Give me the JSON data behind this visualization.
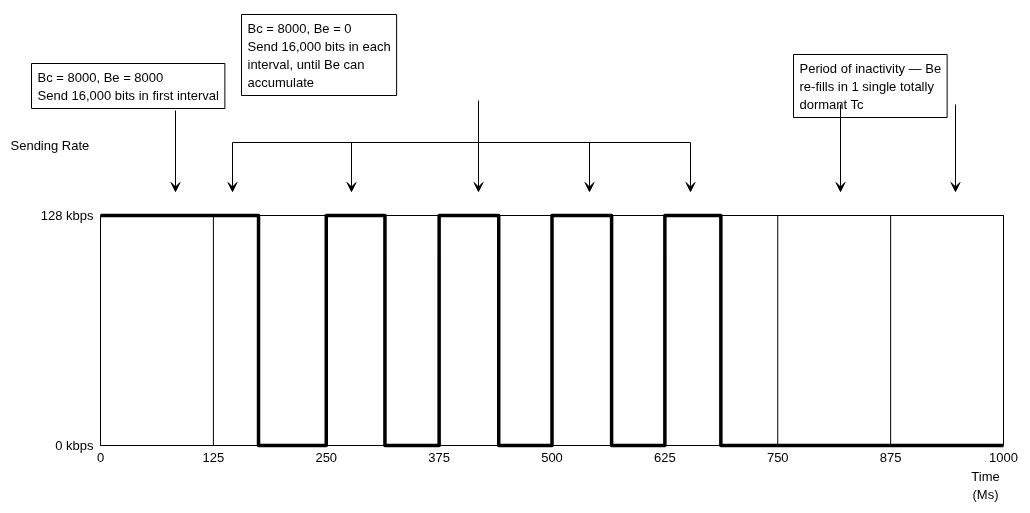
{
  "chart_data": {
    "type": "step",
    "title": null,
    "x": [
      0,
      175,
      250,
      315,
      375,
      441,
      500,
      566,
      625,
      687,
      1000
    ],
    "series": [
      {
        "color": "#000000",
        "values": [
          128,
          0,
          128,
          0,
          128,
          0,
          128,
          0,
          128,
          0,
          0
        ]
      }
    ],
    "xlim": [
      0,
      1000
    ],
    "xticks": [
      0,
      125,
      250,
      375,
      500,
      625,
      750,
      875,
      1000
    ],
    "ylim": [
      0,
      128
    ],
    "yticks": [
      {
        "value": 0,
        "label": "0 kbps"
      },
      {
        "value": 128,
        "label": "128 kbps"
      }
    ],
    "grid": "x",
    "line_style": "solid",
    "xlabel": "Time\n(Ms)",
    "ylabel": "Sending Rate",
    "annotations": [
      "Bc = 8000, Be = 8000\nSend 16,000 bits in first interval",
      "Bc = 8000, Be = 0\nSend 16,000 bits in each\ninterval, until Be can\naccumulate",
      "Period of inactivity — Be\nre-fills in 1 single totally\ndormant Tc"
    ]
  }
}
